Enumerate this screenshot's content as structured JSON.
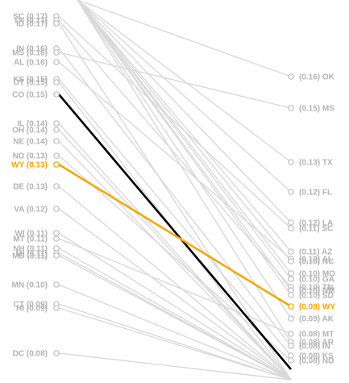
{
  "chart_data": {
    "type": "line",
    "subtype": "slopegraph",
    "colors": {
      "background_line": "#d9d9d9",
      "highlight_wy": "#f5a800",
      "highlight_co": "#000000",
      "label_muted": "#b3b3b3"
    },
    "highlight": [
      "WY",
      "CO"
    ],
    "left_labels": [
      {
        "state": "SC",
        "value": 0.17,
        "text": "SC (0.17)"
      },
      {
        "state": "TN",
        "value": 0.17,
        "text": "TN (0.17)"
      },
      {
        "state": "ID",
        "value": 0.17,
        "text": "ID (0.17)"
      },
      {
        "state": "IN",
        "value": 0.16,
        "text": "IN (0.16)"
      },
      {
        "state": "MS",
        "value": 0.16,
        "text": "MS (0.16)"
      },
      {
        "state": "AL",
        "value": 0.16,
        "text": "AL (0.16)"
      },
      {
        "state": "KS",
        "value": 0.15,
        "text": "KS (0.15)"
      },
      {
        "state": "UT",
        "value": 0.15,
        "text": "UT (0.15)"
      },
      {
        "state": "CO",
        "value": 0.15,
        "text": "CO (0.15)"
      },
      {
        "state": "IL",
        "value": 0.14,
        "text": "IL (0.14)"
      },
      {
        "state": "OH",
        "value": 0.14,
        "text": "OH (0.14)"
      },
      {
        "state": "NE",
        "value": 0.14,
        "text": "NE (0.14)"
      },
      {
        "state": "ND",
        "value": 0.13,
        "text": "ND (0.13)"
      },
      {
        "state": "WY",
        "value": 0.13,
        "text": "WY (0.13)"
      },
      {
        "state": "DE",
        "value": 0.13,
        "text": "DE (0.13)"
      },
      {
        "state": "VA",
        "value": 0.12,
        "text": "VA (0.12)"
      },
      {
        "state": "WI",
        "value": 0.11,
        "text": "WI (0.11)"
      },
      {
        "state": "MT",
        "value": 0.11,
        "text": "MT (0.11)"
      },
      {
        "state": "NH",
        "value": 0.11,
        "text": "NH (0.11)"
      },
      {
        "state": "MI",
        "value": 0.11,
        "text": "MI (0.11)"
      },
      {
        "state": "MD",
        "value": 0.11,
        "text": "MD (0.11)"
      },
      {
        "state": "MN",
        "value": 0.1,
        "text": "MN (0.10)"
      },
      {
        "state": "CT",
        "value": 0.09,
        "text": "CT (0.09)"
      },
      {
        "state": "HI",
        "value": 0.09,
        "text": "HI (0.09)"
      },
      {
        "state": "DC",
        "value": 0.08,
        "text": "DC (0.08)"
      }
    ],
    "right_labels": [
      {
        "state": "OK",
        "value": 0.16,
        "text": "(0.16) OK"
      },
      {
        "state": "MS",
        "value": 0.15,
        "text": "(0.15) MS"
      },
      {
        "state": "TX",
        "value": 0.13,
        "text": "(0.13) TX"
      },
      {
        "state": "FL",
        "value": 0.12,
        "text": "(0.12) FL"
      },
      {
        "state": "LA",
        "value": 0.12,
        "text": "(0.12) LA"
      },
      {
        "state": "SC",
        "value": 0.11,
        "text": "(0.11) SC"
      },
      {
        "state": "AZ",
        "value": 0.11,
        "text": "(0.11) AZ"
      },
      {
        "state": "AL",
        "value": 0.1,
        "text": "(0.10) AL"
      },
      {
        "state": "NC",
        "value": 0.1,
        "text": "(0.10) NC"
      },
      {
        "state": "MO",
        "value": 0.1,
        "text": "(0.10) MO"
      },
      {
        "state": "GA",
        "value": 0.1,
        "text": "(0.10) GA"
      },
      {
        "state": "TN",
        "value": 0.1,
        "text": "(0.10) TN"
      },
      {
        "state": "NM",
        "value": 0.1,
        "text": "(0.10) NM"
      },
      {
        "state": "SD",
        "value": 0.1,
        "text": "(0.10) SD"
      },
      {
        "state": "WY",
        "value": 0.09,
        "text": "(0.09) WY"
      },
      {
        "state": "AK",
        "value": 0.09,
        "text": "(0.09) AK"
      },
      {
        "state": "MT",
        "value": 0.08,
        "text": "(0.08) MT"
      },
      {
        "state": "AR",
        "value": 0.08,
        "text": "(0.08) AR"
      },
      {
        "state": "IN",
        "value": 0.08,
        "text": "(0.08) IN"
      },
      {
        "state": "KS",
        "value": 0.08,
        "text": "(0.08) KS"
      },
      {
        "state": "ND",
        "value": 0.08,
        "text": "(0.08) ND"
      }
    ],
    "lines": [
      {
        "state": "CO",
        "left": 0.15,
        "right": 0.07
      },
      {
        "state": "WY",
        "left": 0.13,
        "right": 0.09
      },
      {
        "state": "SC",
        "left": 0.17,
        "right": 0.11
      },
      {
        "state": "TN",
        "left": 0.17,
        "right": 0.1
      },
      {
        "state": "ID",
        "left": 0.17,
        "right": 0.07
      },
      {
        "state": "IN",
        "left": 0.16,
        "right": 0.08
      },
      {
        "state": "MS",
        "left": 0.16,
        "right": 0.15
      },
      {
        "state": "AL",
        "left": 0.16,
        "right": 0.1
      },
      {
        "state": "KS",
        "left": 0.15,
        "right": 0.08
      },
      {
        "state": "UT",
        "left": 0.15,
        "right": 0.07
      },
      {
        "state": "IL",
        "left": 0.14,
        "right": 0.07
      },
      {
        "state": "OH",
        "left": 0.14,
        "right": 0.07
      },
      {
        "state": "NE",
        "left": 0.14,
        "right": 0.07
      },
      {
        "state": "ND",
        "left": 0.13,
        "right": 0.08
      },
      {
        "state": "DE",
        "left": 0.13,
        "right": 0.07
      },
      {
        "state": "VA",
        "left": 0.12,
        "right": 0.07
      },
      {
        "state": "WI",
        "left": 0.11,
        "right": 0.07
      },
      {
        "state": "MT",
        "left": 0.11,
        "right": 0.08
      },
      {
        "state": "NH",
        "left": 0.11,
        "right": 0.07
      },
      {
        "state": "MI",
        "left": 0.11,
        "right": 0.07
      },
      {
        "state": "MD",
        "left": 0.11,
        "right": 0.07
      },
      {
        "state": "MN",
        "left": 0.1,
        "right": 0.07
      },
      {
        "state": "CT",
        "left": 0.09,
        "right": 0.07
      },
      {
        "state": "HI",
        "left": 0.09,
        "right": 0.07
      },
      {
        "state": "DC",
        "left": 0.08,
        "right": 0.07
      },
      {
        "state": "OK",
        "left": 0.18,
        "right": 0.16
      },
      {
        "state": "TX",
        "left": 0.18,
        "right": 0.13
      },
      {
        "state": "FL",
        "left": 0.18,
        "right": 0.12
      },
      {
        "state": "LA",
        "left": 0.18,
        "right": 0.12
      },
      {
        "state": "AZ",
        "left": 0.18,
        "right": 0.11
      },
      {
        "state": "NC",
        "left": 0.18,
        "right": 0.1
      },
      {
        "state": "MO",
        "left": 0.18,
        "right": 0.1
      },
      {
        "state": "GA",
        "left": 0.18,
        "right": 0.1
      },
      {
        "state": "NM",
        "left": 0.18,
        "right": 0.1
      },
      {
        "state": "SD",
        "left": 0.18,
        "right": 0.1
      },
      {
        "state": "AK",
        "left": 0.18,
        "right": 0.09
      },
      {
        "state": "AR",
        "left": 0.18,
        "right": 0.08
      }
    ]
  }
}
